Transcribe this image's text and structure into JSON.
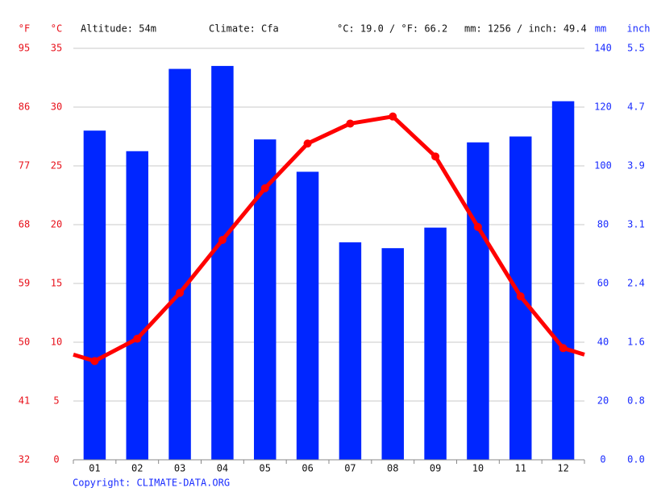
{
  "chart_data": {
    "type": "bar_line",
    "annotations": [
      "Altitude: 54m",
      "Climate: Cfa",
      "°C: 19.0 / °F: 66.2",
      "mm: 1256 / inch: 49.4"
    ],
    "copyright": "Copyright: CLIMATE-DATA.ORG",
    "categories": [
      "01",
      "02",
      "03",
      "04",
      "05",
      "06",
      "07",
      "08",
      "09",
      "10",
      "11",
      "12"
    ],
    "series": [
      {
        "type": "bar",
        "axis": "y2",
        "color": "#0026ff",
        "values": [
          112,
          105,
          133,
          134,
          109,
          98,
          74,
          72,
          79,
          108,
          110,
          122
        ]
      },
      {
        "type": "line",
        "color": "#ff0000",
        "values": [
          8.4,
          10.3,
          14.2,
          18.7,
          23.1,
          26.9,
          28.6,
          29.2,
          25.8,
          19.8,
          13.9,
          9.5
        ]
      }
    ],
    "ylabel": "°C",
    "ylim": [
      0,
      35
    ],
    "yticks": [
      0,
      5,
      10,
      15,
      20,
      25,
      30,
      35
    ],
    "y2label": "mm",
    "y2lim": [
      0,
      140
    ],
    "y2ticks": [
      0,
      20,
      40,
      60,
      80,
      100,
      120,
      140
    ],
    "fahrenheit_axis": {
      "label": "°F",
      "lim": [
        32,
        95
      ],
      "ticks": [
        32,
        41,
        50,
        59,
        68,
        77,
        86,
        95
      ]
    },
    "inch_axis": {
      "label": "inch",
      "lim": [
        0,
        5.5118
      ],
      "ticks": [
        {
          "value": 0,
          "label": "0.0"
        },
        {
          "value": 0.7874,
          "label": "0.8"
        },
        {
          "value": 1.5748,
          "label": "1.6"
        },
        {
          "value": 2.3622,
          "label": "2.4"
        },
        {
          "value": 3.1496,
          "label": "3.1"
        },
        {
          "value": 3.937,
          "label": "3.9"
        },
        {
          "value": 4.7244,
          "label": "4.7"
        },
        {
          "value": 5.5118,
          "label": "5.5"
        }
      ]
    },
    "grid": true
  }
}
